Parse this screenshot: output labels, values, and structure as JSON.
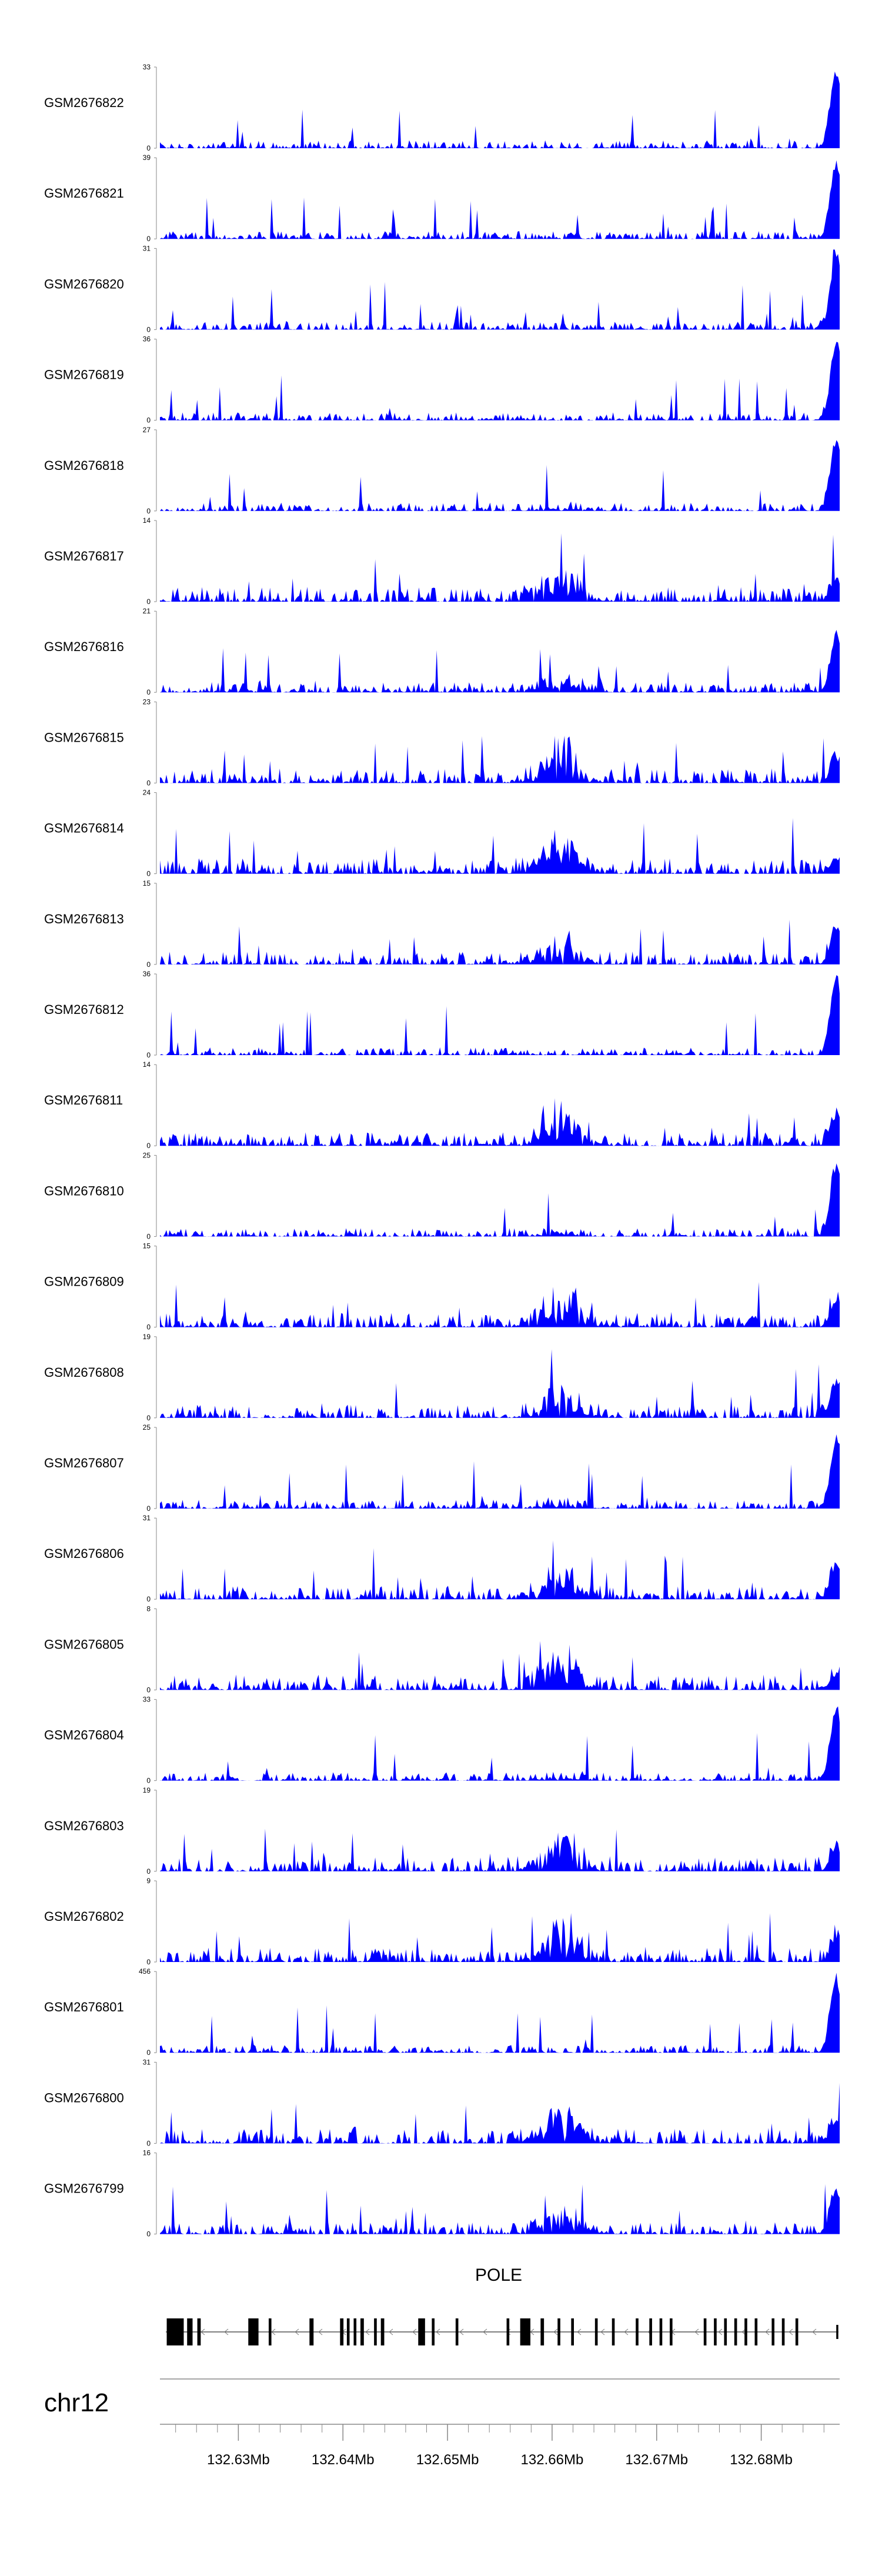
{
  "chart_data": {
    "type": "area",
    "title": "",
    "track_color": "#0000ff",
    "gene_color": "#000000",
    "axis_color": "#888888",
    "tracks": [
      {
        "name": "GSM2676822",
        "max": "33",
        "min": "0",
        "peak_end": 1.0
      },
      {
        "name": "GSM2676821",
        "max": "39",
        "min": "0",
        "peak_end": 1.0
      },
      {
        "name": "GSM2676820",
        "max": "31",
        "min": "0",
        "peak_end": 1.0
      },
      {
        "name": "GSM2676819",
        "max": "36",
        "min": "0",
        "peak_end": 1.0
      },
      {
        "name": "GSM2676818",
        "max": "27",
        "min": "0",
        "peak_end": 0.95
      },
      {
        "name": "GSM2676817",
        "max": "14",
        "min": "0",
        "peak_end": 0.3
      },
      {
        "name": "GSM2676816",
        "max": "21",
        "min": "0",
        "peak_end": 0.75
      },
      {
        "name": "GSM2676815",
        "max": "23",
        "min": "0",
        "peak_end": 0.3
      },
      {
        "name": "GSM2676814",
        "max": "24",
        "min": "0",
        "peak_end": 0.2
      },
      {
        "name": "GSM2676813",
        "max": "15",
        "min": "0",
        "peak_end": 0.5
      },
      {
        "name": "GSM2676812",
        "max": "36",
        "min": "0",
        "peak_end": 1.0
      },
      {
        "name": "GSM2676811",
        "max": "14",
        "min": "0",
        "peak_end": 0.4
      },
      {
        "name": "GSM2676810",
        "max": "25",
        "min": "0",
        "peak_end": 0.95
      },
      {
        "name": "GSM2676809",
        "max": "15",
        "min": "0",
        "peak_end": 0.35
      },
      {
        "name": "GSM2676808",
        "max": "19",
        "min": "0",
        "peak_end": 0.45
      },
      {
        "name": "GSM2676807",
        "max": "25",
        "min": "0",
        "peak_end": 0.9
      },
      {
        "name": "GSM2676806",
        "max": "31",
        "min": "0",
        "peak_end": 0.45
      },
      {
        "name": "GSM2676805",
        "max": "8",
        "min": "0",
        "peak_end": 0.2
      },
      {
        "name": "GSM2676804",
        "max": "33",
        "min": "0",
        "peak_end": 0.95
      },
      {
        "name": "GSM2676803",
        "max": "19",
        "min": "0",
        "peak_end": 0.3
      },
      {
        "name": "GSM2676802",
        "max": "9",
        "min": "0",
        "peak_end": 0.3
      },
      {
        "name": "GSM2676801",
        "max": "456",
        "min": "0",
        "peak_end": 1.0
      },
      {
        "name": "GSM2676800",
        "max": "31",
        "min": "0",
        "peak_end": 0.3
      },
      {
        "name": "GSM2676799",
        "max": "16",
        "min": "0",
        "peak_end": 0.6
      }
    ],
    "gene": {
      "name": "POLE",
      "strand": "-"
    },
    "chromosome": "chr12",
    "x_range": [
      132.6225,
      132.6875
    ],
    "x_unit": "Mb",
    "x_ticks": [
      {
        "value": 132.63,
        "label": "132.63Mb"
      },
      {
        "value": 132.64,
        "label": "132.64Mb"
      },
      {
        "value": 132.65,
        "label": "132.65Mb"
      },
      {
        "value": 132.66,
        "label": "132.66Mb"
      },
      {
        "value": 132.67,
        "label": "132.67Mb"
      },
      {
        "value": 132.68,
        "label": "132.68Mb"
      }
    ],
    "x_minor_step": 0.002
  }
}
